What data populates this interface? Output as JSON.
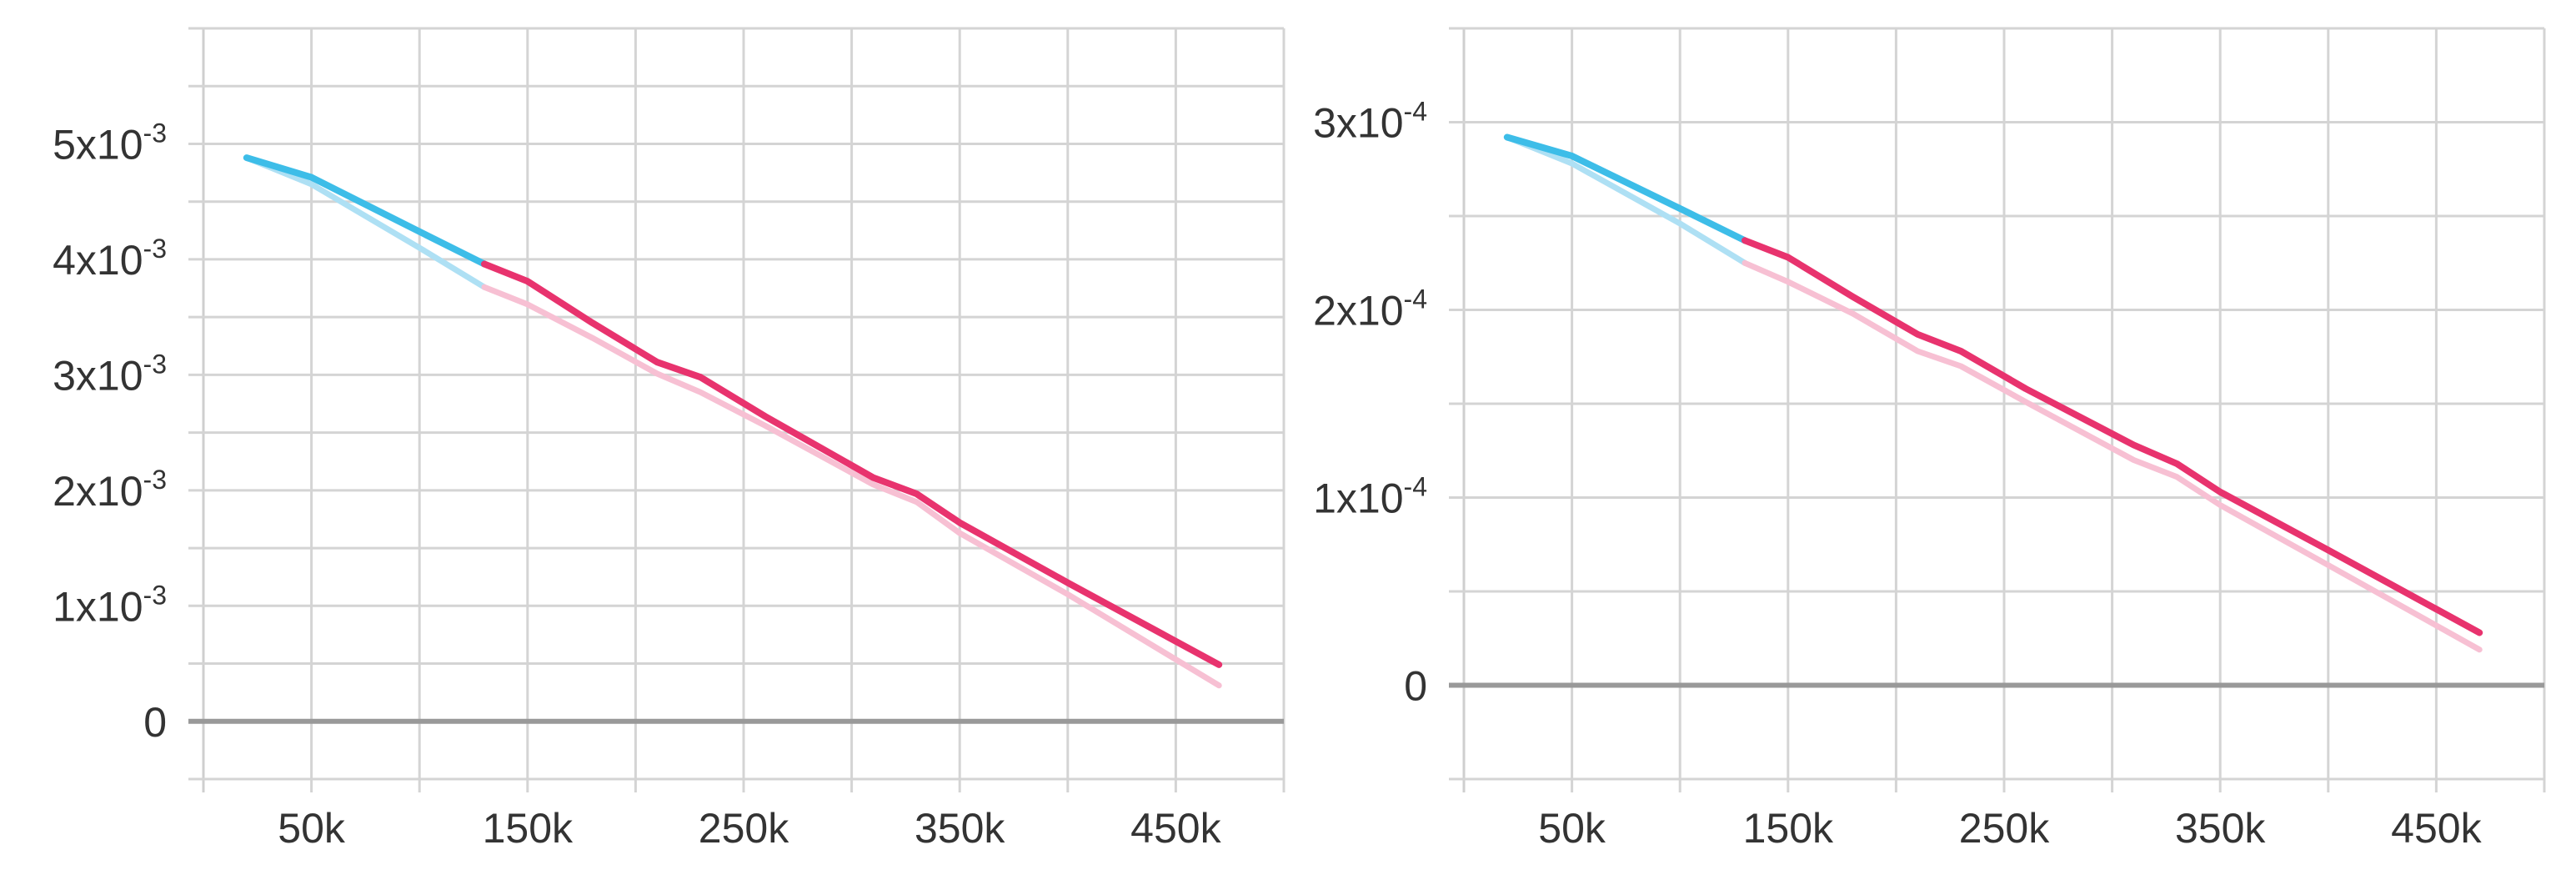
{
  "chart_data": [
    {
      "type": "line",
      "title": "",
      "xlabel": "",
      "ylabel": "",
      "xlim": [
        0,
        500000
      ],
      "ylim": [
        -0.0005,
        0.006
      ],
      "x_ticks": [
        50000,
        150000,
        250000,
        350000,
        450000
      ],
      "x_tick_labels": [
        "50k",
        "150k",
        "250k",
        "350k",
        "450k"
      ],
      "y_ticks": [
        0,
        0.001,
        0.002,
        0.003,
        0.004,
        0.005
      ],
      "y_tick_labels": [
        {
          "mantissa": "0",
          "exponent": ""
        },
        {
          "mantissa": "1x10",
          "exponent": "-3"
        },
        {
          "mantissa": "2x10",
          "exponent": "-3"
        },
        {
          "mantissa": "3x10",
          "exponent": "-3"
        },
        {
          "mantissa": "4x10",
          "exponent": "-3"
        },
        {
          "mantissa": "5x10",
          "exponent": "-3"
        }
      ],
      "grid": true,
      "series": [
        {
          "color": "#3dbde8",
          "x": [
            20000,
            50000,
            100000,
            130000
          ],
          "y": [
            0.00488,
            0.00471,
            0.00424,
            0.00396
          ]
        },
        {
          "color": "#e8336e",
          "x": [
            130000,
            150000,
            180000,
            210000,
            230000,
            260000,
            310000,
            330000,
            350000,
            400000,
            470000
          ],
          "y": [
            0.00396,
            0.00381,
            0.00345,
            0.00311,
            0.00298,
            0.00264,
            0.00211,
            0.00197,
            0.00172,
            0.0012,
            0.00049
          ]
        },
        {
          "color": "#aee0f4",
          "x": [
            20000,
            50000,
            100000,
            130000
          ],
          "y": [
            0.00488,
            0.00465,
            0.0041,
            0.00376
          ]
        },
        {
          "color": "#f7c0d3",
          "x": [
            130000,
            150000,
            180000,
            210000,
            230000,
            260000,
            310000,
            330000,
            350000,
            400000,
            470000
          ],
          "y": [
            0.00376,
            0.00361,
            0.00332,
            0.00301,
            0.00285,
            0.00256,
            0.00205,
            0.0019,
            0.00163,
            0.0011,
            0.00031
          ]
        }
      ]
    },
    {
      "type": "line",
      "title": "",
      "xlabel": "",
      "ylabel": "",
      "xlim": [
        0,
        500000
      ],
      "ylim": [
        -5e-05,
        0.00035
      ],
      "x_ticks": [
        50000,
        150000,
        250000,
        350000,
        450000
      ],
      "x_tick_labels": [
        "50k",
        "150k",
        "250k",
        "350k",
        "450k"
      ],
      "y_ticks": [
        0,
        0.0001,
        0.0002,
        0.0003
      ],
      "y_tick_labels": [
        {
          "mantissa": "0",
          "exponent": ""
        },
        {
          "mantissa": "1x10",
          "exponent": "-4"
        },
        {
          "mantissa": "2x10",
          "exponent": "-4"
        },
        {
          "mantissa": "3x10",
          "exponent": "-4"
        }
      ],
      "grid": true,
      "series": [
        {
          "color": "#3dbde8",
          "x": [
            20000,
            50000,
            100000,
            130000
          ],
          "y": [
            0.000292,
            0.000282,
            0.000254,
            0.000237
          ]
        },
        {
          "color": "#e8336e",
          "x": [
            130000,
            150000,
            180000,
            210000,
            230000,
            260000,
            310000,
            330000,
            350000,
            400000,
            470000
          ],
          "y": [
            0.000237,
            0.000228,
            0.000207,
            0.000187,
            0.000178,
            0.000158,
            0.000128,
            0.000118,
            0.000103,
            7.2e-05,
            2.8e-05
          ]
        },
        {
          "color": "#aee0f4",
          "x": [
            20000,
            50000,
            100000,
            130000
          ],
          "y": [
            0.000292,
            0.000278,
            0.000246,
            0.000225
          ]
        },
        {
          "color": "#f7c0d3",
          "x": [
            130000,
            150000,
            180000,
            210000,
            230000,
            260000,
            310000,
            330000,
            350000,
            400000,
            470000
          ],
          "y": [
            0.000225,
            0.000215,
            0.000198,
            0.000178,
            0.00017,
            0.000151,
            0.00012,
            0.000111,
            9.6e-05,
            6.4e-05,
            1.9e-05
          ]
        }
      ]
    }
  ]
}
